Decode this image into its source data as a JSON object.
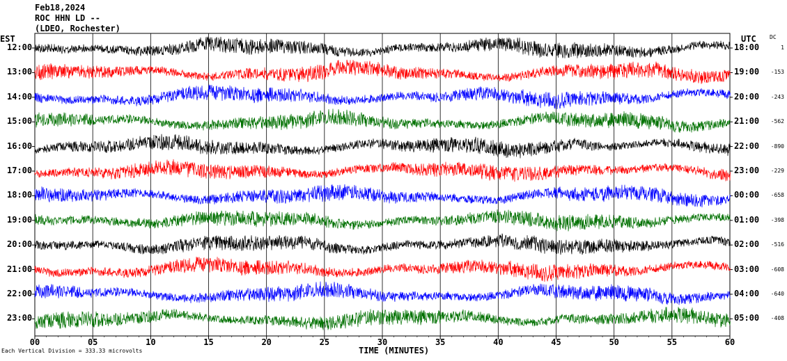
{
  "header": {
    "line1": "Feb18,2024",
    "line2": "ROC HHN LD --",
    "line3": "(LDEO, Rochester)"
  },
  "left_axis_title": "EST",
  "right_axis_title": "UTC",
  "dc_title": "DC",
  "x_axis_title": "TIME (MINUTES)",
  "footer": "Each Vertical Division =  333.33 microvolts",
  "colors": {
    "cycle": [
      "#000000",
      "#ff0000",
      "#0000ff",
      "#007000"
    ]
  },
  "chart_data": {
    "type": "line",
    "description_type": "helicorder seismogram",
    "x": {
      "label": "TIME (MINUTES)",
      "ticks": [
        0,
        5,
        10,
        15,
        20,
        25,
        30,
        35,
        40,
        45,
        50,
        55,
        60
      ],
      "range": [
        0,
        60
      ]
    },
    "rows": [
      {
        "est": "12:00",
        "utc": "18:00",
        "dc": "1"
      },
      {
        "est": "13:00",
        "utc": "19:00",
        "dc": "-153"
      },
      {
        "est": "14:00",
        "utc": "20:00",
        "dc": "-243"
      },
      {
        "est": "15:00",
        "utc": "21:00",
        "dc": "-562"
      },
      {
        "est": "16:00",
        "utc": "22:00",
        "dc": "-890"
      },
      {
        "est": "17:00",
        "utc": "23:00",
        "dc": "-229"
      },
      {
        "est": "18:00",
        "utc": "00:00",
        "dc": "-658"
      },
      {
        "est": "19:00",
        "utc": "01:00",
        "dc": "-398"
      },
      {
        "est": "20:00",
        "utc": "02:00",
        "dc": "-516"
      },
      {
        "est": "21:00",
        "utc": "03:00",
        "dc": "-608"
      },
      {
        "est": "22:00",
        "utc": "04:00",
        "dc": "-640"
      },
      {
        "est": "23:00",
        "utc": "05:00",
        "dc": "-408"
      }
    ],
    "vertical_division": "333.33 microvolts",
    "grid": true
  }
}
